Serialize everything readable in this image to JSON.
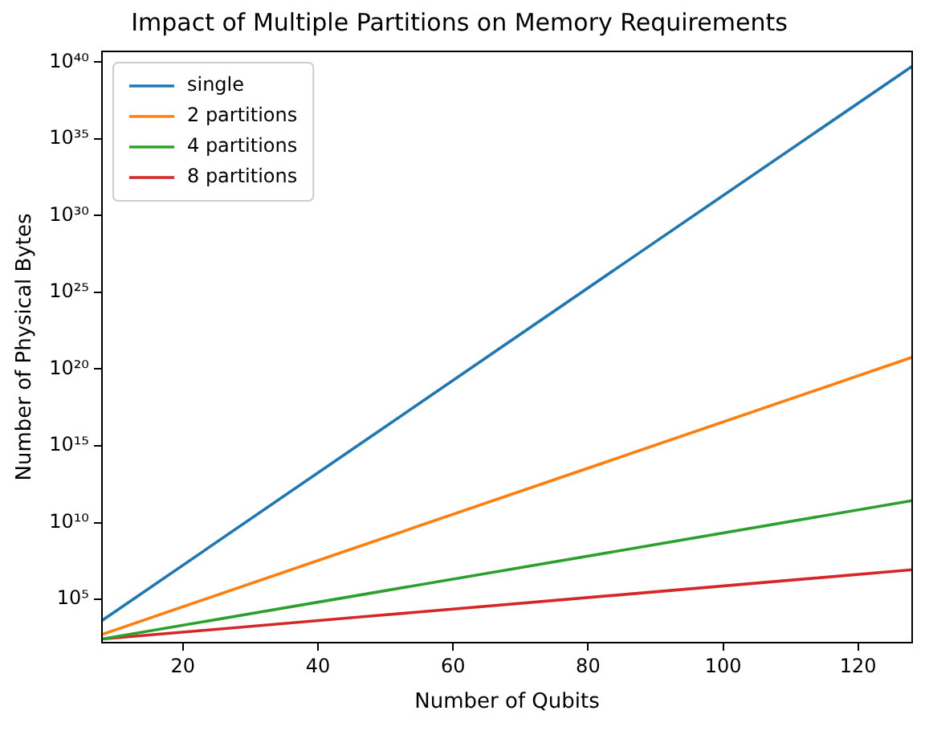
{
  "chart_data": {
    "type": "line",
    "title": "Impact of Multiple Partitions on Memory Requirements",
    "xlabel": "Number of Qubits",
    "ylabel": "Number of Physical Bytes",
    "x": [
      8,
      48,
      88,
      128
    ],
    "series": [
      {
        "name": "single",
        "color": "#1f77b4",
        "values": [
          4100,
          4500000000000000.0,
          5e+27,
          5.4e+39
        ]
      },
      {
        "name": "2 partitions",
        "color": "#ff7f0e",
        "values": [
          512,
          540000000.0,
          560000000000000.0,
          5.9e+20
        ]
      },
      {
        "name": "4 partitions",
        "color": "#2ca02c",
        "values": [
          256,
          260000.0,
          260000000.0,
          270000000000.0
        ]
      },
      {
        "name": "8 partitions",
        "color": "#d62728",
        "values": [
          256,
          8200,
          260000.0,
          8400000.0
        ]
      }
    ],
    "xlim": [
      8,
      128
    ],
    "xticks": [
      20,
      40,
      60,
      80,
      100,
      120
    ],
    "ylim": [
      150,
      5e+40
    ],
    "yticks": [
      {
        "value": 100000.0,
        "label": "10⁵"
      },
      {
        "value": 10000000000.0,
        "label": "10¹⁰"
      },
      {
        "value": 1000000000000000.0,
        "label": "10¹⁵"
      },
      {
        "value": 1e+20,
        "label": "10²⁰"
      },
      {
        "value": 1e+25,
        "label": "10²⁵"
      },
      {
        "value": 1e+30,
        "label": "10³⁰"
      },
      {
        "value": 1e+35,
        "label": "10³⁵"
      },
      {
        "value": 1e+40,
        "label": "10⁴⁰"
      }
    ],
    "log": "y",
    "grid": false,
    "legend": "top left",
    "marker": "none",
    "line_style": "solid"
  }
}
